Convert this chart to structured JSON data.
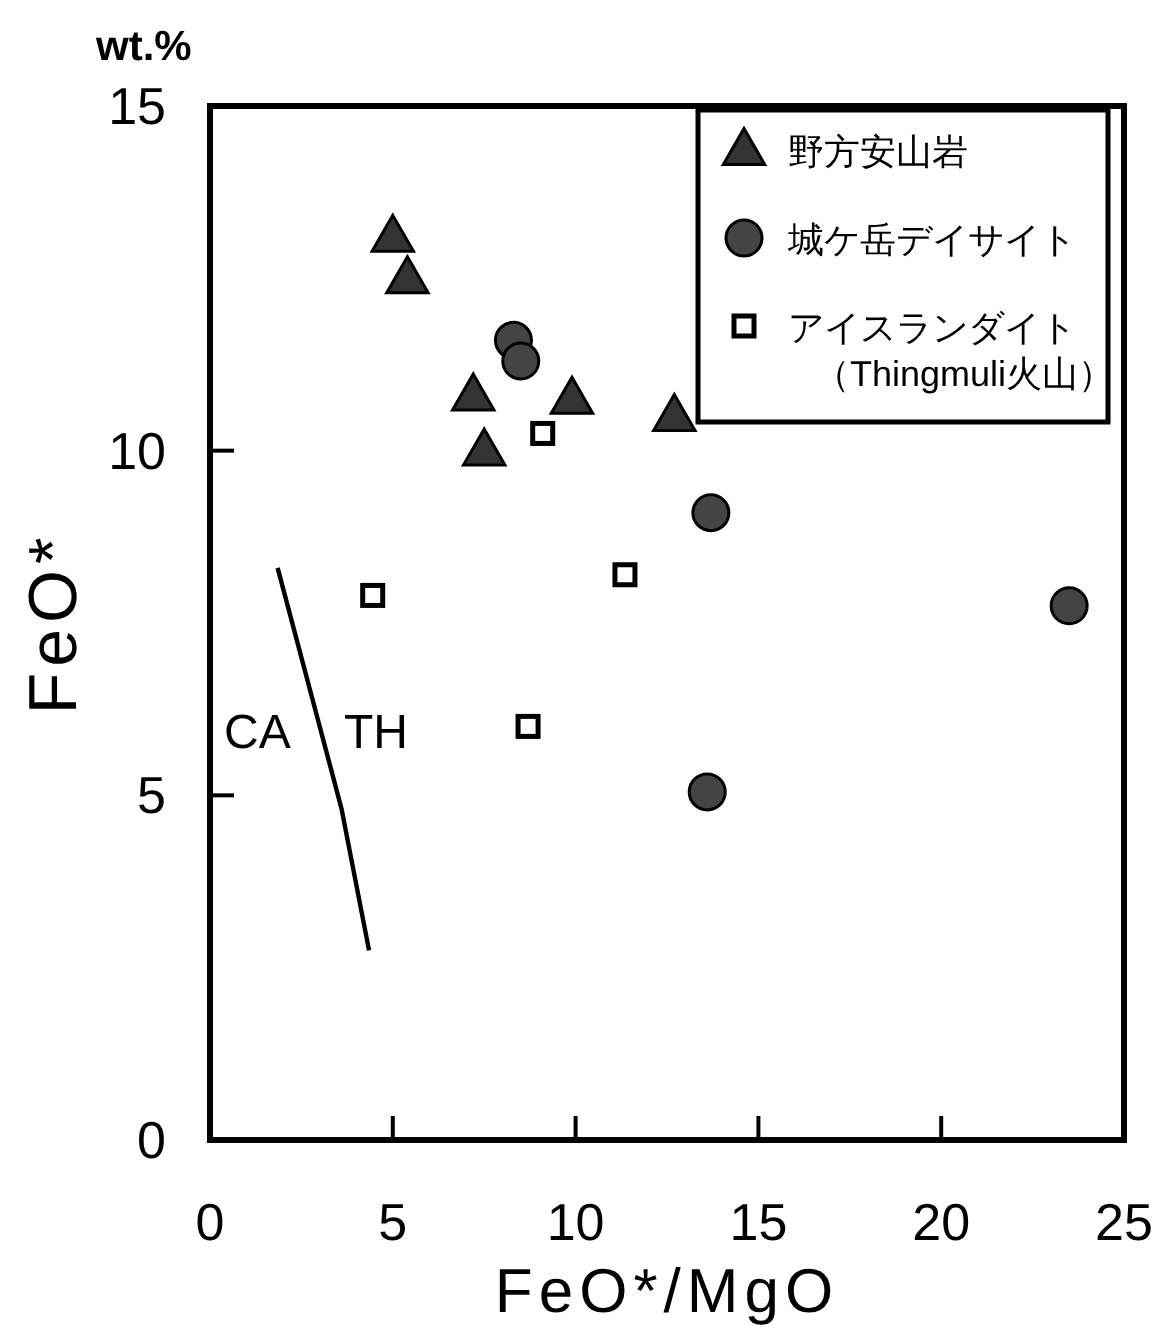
{
  "chart_data": {
    "type": "scatter",
    "xlabel": "FeO*/MgO",
    "ylabel": "FeO*",
    "annotations": [
      "wt.%",
      "CA",
      "TH"
    ],
    "xlim": [
      0,
      25
    ],
    "ylim": [
      0,
      15
    ],
    "xticks": [
      0,
      5,
      10,
      15,
      20,
      25
    ],
    "yticks": [
      0,
      5,
      10,
      15
    ],
    "grid": false,
    "legend": "top right",
    "series": [
      {
        "name": "野方安山岩",
        "marker": "triangle",
        "color": "#333333",
        "x": [
          5.0,
          5.4,
          7.2,
          7.5,
          9.9,
          12.7
        ],
        "values": [
          13.1,
          12.5,
          10.8,
          10.0,
          10.75,
          10.5
        ]
      },
      {
        "name": "城ケ岳デイサイト",
        "marker": "circle",
        "color": "#444444",
        "x": [
          8.3,
          8.5,
          13.7,
          23.5,
          13.6
        ],
        "values": [
          11.6,
          11.3,
          9.1,
          7.75,
          5.05
        ]
      },
      {
        "name": "アイスランダイト（Thingmuli火山）",
        "marker": "square",
        "color": "#000000",
        "x": [
          9.1,
          4.45,
          11.35,
          8.7
        ],
        "values": [
          10.25,
          7.9,
          8.2,
          6.0
        ]
      },
      {
        "type": "line",
        "marker": "none",
        "color": "#000000",
        "x": [
          1.85,
          3.6,
          4.35
        ],
        "values": [
          8.3,
          4.8,
          2.75
        ]
      }
    ]
  }
}
